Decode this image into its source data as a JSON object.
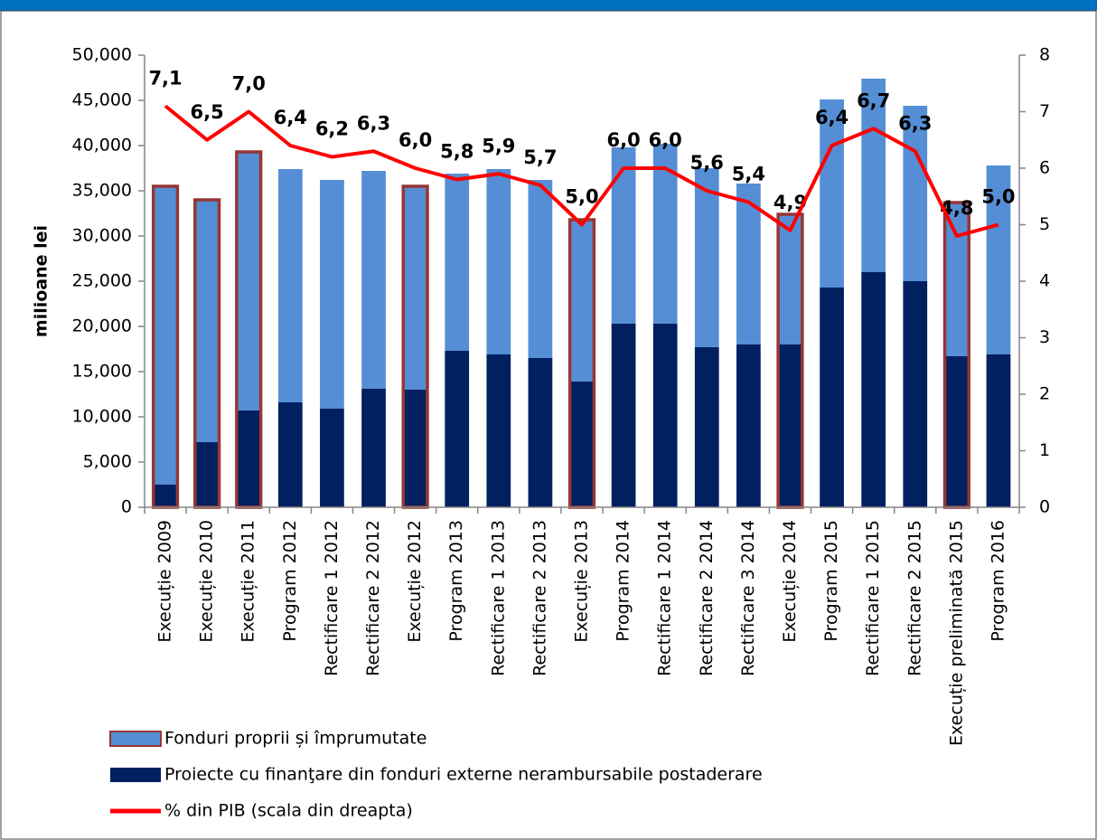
{
  "chart_data": {
    "type": "bar",
    "stacked": true,
    "y_label": "milioane lei",
    "categories": [
      "Execuție 2009",
      "Execuție 2010",
      "Execuție 2011",
      "Program 2012",
      "Rectificare 1 2012",
      "Rectificare 2 2012",
      "Execuție 2012",
      "Program 2013",
      "Rectificare 1 2013",
      "Rectificare 2 2013",
      "Execuție 2013",
      "Program 2014",
      "Rectificare 1 2014",
      "Rectificare 2 2014",
      "Rectificare 3 2014",
      "Execuție 2014",
      "Program 2015",
      "Rectificare 1 2015",
      "Rectificare 2 2015",
      "Execuție preliminată 2015",
      "Program 2016"
    ],
    "outlined": [
      true,
      true,
      true,
      false,
      false,
      false,
      true,
      false,
      false,
      false,
      true,
      false,
      false,
      false,
      false,
      true,
      false,
      false,
      false,
      true,
      false
    ],
    "outline_color": "#953735",
    "series": [
      {
        "name": "Fonduri proprii și împrumutate",
        "color": "#558ed5",
        "values": [
          33000,
          26800,
          28600,
          25800,
          25300,
          24100,
          22500,
          19600,
          20500,
          19700,
          17900,
          19500,
          19900,
          19800,
          17800,
          14400,
          20800,
          21400,
          19400,
          17000,
          20900
        ]
      },
      {
        "name": "Proiecte cu finanţare din fonduri externe nerambursabile postaderare",
        "color": "#002060",
        "values": [
          2500,
          7200,
          10700,
          11600,
          10900,
          13100,
          13000,
          17300,
          16900,
          16500,
          13900,
          20300,
          20300,
          17700,
          18000,
          18000,
          24300,
          26000,
          25000,
          16700,
          16900
        ]
      },
      {
        "name": "% din PIB (scala din dreapta)",
        "color": "#ff0000",
        "type": "line",
        "axis": "y2",
        "values": [
          7.1,
          6.5,
          7.0,
          6.4,
          6.2,
          6.3,
          6.0,
          5.8,
          5.9,
          5.7,
          5.0,
          6.0,
          6.0,
          5.6,
          5.4,
          4.9,
          6.4,
          6.7,
          6.3,
          4.8,
          5.0
        ],
        "value_labels": [
          "7,1",
          "6,5",
          "7,0",
          "6,4",
          "6,2",
          "6,3",
          "6,0",
          "5,8",
          "5,9",
          "5,7",
          "5,0",
          "6,0",
          "6,0",
          "5,6",
          "5,4",
          "4,9",
          "6,4",
          "6,7",
          "6,3",
          "4,8",
          "5,0"
        ]
      }
    ],
    "ylim": [
      0,
      50000
    ],
    "yticks": [
      0,
      {
        "value": 5000,
        "label": "5,000"
      },
      {
        "value": 10000,
        "label": "10,000"
      },
      {
        "value": 15000,
        "label": "15,000"
      },
      {
        "value": 20000,
        "label": "20,000"
      },
      {
        "value": 25000,
        "label": "25,000"
      },
      {
        "value": 30000,
        "label": "30,000"
      },
      {
        "value": 35000,
        "label": "35,000"
      },
      {
        "value": 40000,
        "label": "40,000"
      },
      {
        "value": 45000,
        "label": "45,000"
      },
      {
        "value": 50000,
        "label": "50,000"
      }
    ],
    "y2lim": [
      0,
      8
    ],
    "y2ticks": [
      0,
      1,
      2,
      3,
      4,
      5,
      6,
      7,
      8
    ]
  }
}
